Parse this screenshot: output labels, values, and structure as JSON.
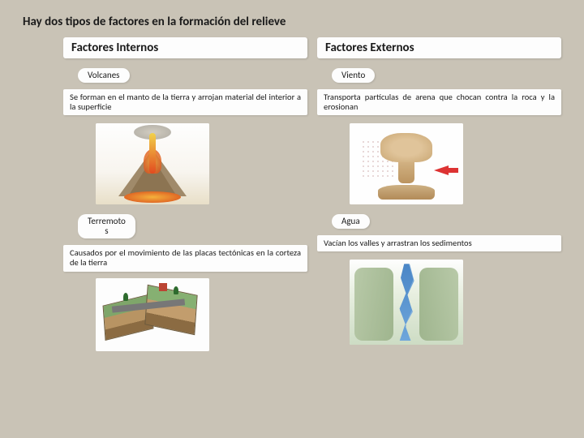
{
  "title": "Hay dos tipos de factores en la formación del relieve",
  "left": {
    "header": "Factores Internos",
    "item1": {
      "label": "Volcanes",
      "desc": "Se forman en el manto de la tierra y arrojan material del interior a la superficie"
    },
    "item2": {
      "label": "Terremoto\ns",
      "desc": "Causados por el movimiento de las placas tectónicas en la corteza de la tierra"
    }
  },
  "right": {
    "header": "Factores Externos",
    "item1": {
      "label": "Viento",
      "desc": "Transporta partículas de arena que chocan contra la roca y la erosionan"
    },
    "item2": {
      "label": "Agua",
      "desc": "Vacían los valles y arrastran los sedimentos"
    }
  },
  "colors": {
    "page_bg": "#c9c3b6",
    "card_bg": "#fdfdfd",
    "text": "#1a1a1a"
  }
}
